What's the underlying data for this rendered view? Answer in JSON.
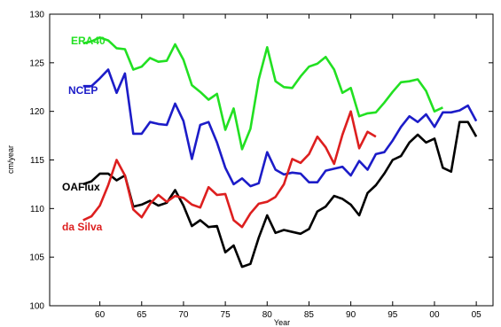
{
  "chart_data": {
    "type": "line",
    "title": "",
    "xlabel": "Year",
    "ylabel": "cm/year",
    "xlim": [
      1954,
      2007
    ],
    "ylim": [
      100,
      130
    ],
    "x_tick_labels": [
      "60",
      "65",
      "70",
      "75",
      "80",
      "85",
      "90",
      "95",
      "00",
      "05"
    ],
    "x_tick_values": [
      1960,
      1965,
      1970,
      1975,
      1980,
      1985,
      1990,
      1995,
      2000,
      2005
    ],
    "y_ticks": [
      100,
      105,
      110,
      115,
      120,
      125,
      130
    ],
    "grid": false,
    "series": [
      {
        "name": "ERA40",
        "color": "#22e022",
        "x": [
          1958,
          1959,
          1960,
          1961,
          1962,
          1963,
          1964,
          1965,
          1966,
          1967,
          1968,
          1969,
          1970,
          1971,
          1972,
          1973,
          1974,
          1975,
          1976,
          1977,
          1978,
          1979,
          1980,
          1981,
          1982,
          1983,
          1984,
          1985,
          1986,
          1987,
          1988,
          1989,
          1990,
          1991,
          1992,
          1993,
          1994,
          1995,
          1996,
          1997,
          1998,
          1999,
          2000,
          2001
        ],
        "y": [
          127.0,
          127.2,
          127.6,
          127.3,
          126.5,
          126.4,
          124.3,
          124.6,
          125.5,
          125.1,
          125.2,
          126.9,
          125.3,
          122.7,
          122.0,
          121.2,
          121.8,
          118.1,
          120.3,
          116.1,
          118.2,
          123.3,
          126.6,
          123.1,
          122.5,
          122.4,
          123.6,
          124.6,
          124.9,
          125.6,
          124.3,
          121.9,
          122.4,
          119.5,
          119.8,
          119.9,
          120.9,
          122.0,
          123.0,
          123.1,
          123.3,
          122.1,
          120.0,
          120.4
        ]
      },
      {
        "name": "NCEP",
        "color": "#1c1cc8",
        "x": [
          1958,
          1959,
          1960,
          1961,
          1962,
          1963,
          1964,
          1965,
          1966,
          1967,
          1968,
          1969,
          1970,
          1971,
          1972,
          1973,
          1974,
          1975,
          1976,
          1977,
          1978,
          1979,
          1980,
          1981,
          1982,
          1983,
          1984,
          1985,
          1986,
          1987,
          1988,
          1989,
          1990,
          1991,
          1992,
          1993,
          1994,
          1995,
          1996,
          1997,
          1998,
          1999,
          2000,
          2001,
          2002,
          2003,
          2004,
          2005
        ],
        "y": [
          122.6,
          122.6,
          123.4,
          124.3,
          121.9,
          123.9,
          117.7,
          117.7,
          118.9,
          118.7,
          118.6,
          120.8,
          119.0,
          115.1,
          118.6,
          118.9,
          116.8,
          114.2,
          112.5,
          113.1,
          112.3,
          112.6,
          115.8,
          114.0,
          113.5,
          113.7,
          113.6,
          112.7,
          112.7,
          113.9,
          114.1,
          114.3,
          113.4,
          114.9,
          114.0,
          115.6,
          115.8,
          117.0,
          118.4,
          119.5,
          118.9,
          119.7,
          118.4,
          119.9,
          119.9,
          120.1,
          120.6,
          119.0
        ]
      },
      {
        "name": "OAFlux",
        "color": "#000000",
        "x": [
          1958,
          1959,
          1960,
          1961,
          1962,
          1963,
          1964,
          1965,
          1966,
          1967,
          1968,
          1969,
          1970,
          1971,
          1972,
          1973,
          1974,
          1975,
          1976,
          1977,
          1978,
          1979,
          1980,
          1981,
          1982,
          1983,
          1984,
          1985,
          1986,
          1987,
          1988,
          1989,
          1990,
          1991,
          1992,
          1993,
          1994,
          1995,
          1996,
          1997,
          1998,
          1999,
          2000,
          2001,
          2002,
          2003,
          2004,
          2005
        ],
        "y": [
          112.5,
          112.8,
          113.6,
          113.6,
          112.9,
          113.4,
          110.2,
          110.4,
          110.8,
          110.3,
          110.6,
          111.9,
          110.3,
          108.2,
          108.8,
          108.1,
          108.2,
          105.5,
          106.2,
          104.0,
          104.3,
          107.0,
          109.3,
          107.5,
          107.8,
          107.6,
          107.4,
          107.9,
          109.7,
          110.2,
          111.3,
          111.0,
          110.4,
          109.3,
          111.6,
          112.4,
          113.6,
          115.0,
          115.4,
          116.8,
          117.6,
          116.8,
          117.2,
          114.2,
          113.8,
          118.9,
          118.9,
          117.4
        ]
      },
      {
        "name": "da Silva",
        "color": "#dd1f1f",
        "x": [
          1958,
          1959,
          1960,
          1961,
          1962,
          1963,
          1964,
          1965,
          1966,
          1967,
          1968,
          1969,
          1970,
          1971,
          1972,
          1973,
          1974,
          1975,
          1976,
          1977,
          1978,
          1979,
          1980,
          1981,
          1982,
          1983,
          1984,
          1985,
          1986,
          1987,
          1988,
          1989,
          1990,
          1991,
          1992,
          1993
        ],
        "y": [
          108.8,
          109.2,
          110.3,
          112.4,
          115.0,
          113.4,
          109.9,
          109.1,
          110.5,
          111.4,
          110.7,
          111.3,
          111.1,
          110.4,
          110.1,
          112.2,
          111.4,
          111.5,
          108.8,
          108.1,
          109.5,
          110.5,
          110.7,
          111.2,
          112.5,
          115.1,
          114.7,
          115.6,
          117.4,
          116.3,
          114.6,
          117.6,
          120.0,
          116.2,
          117.9,
          117.4
        ]
      }
    ]
  }
}
